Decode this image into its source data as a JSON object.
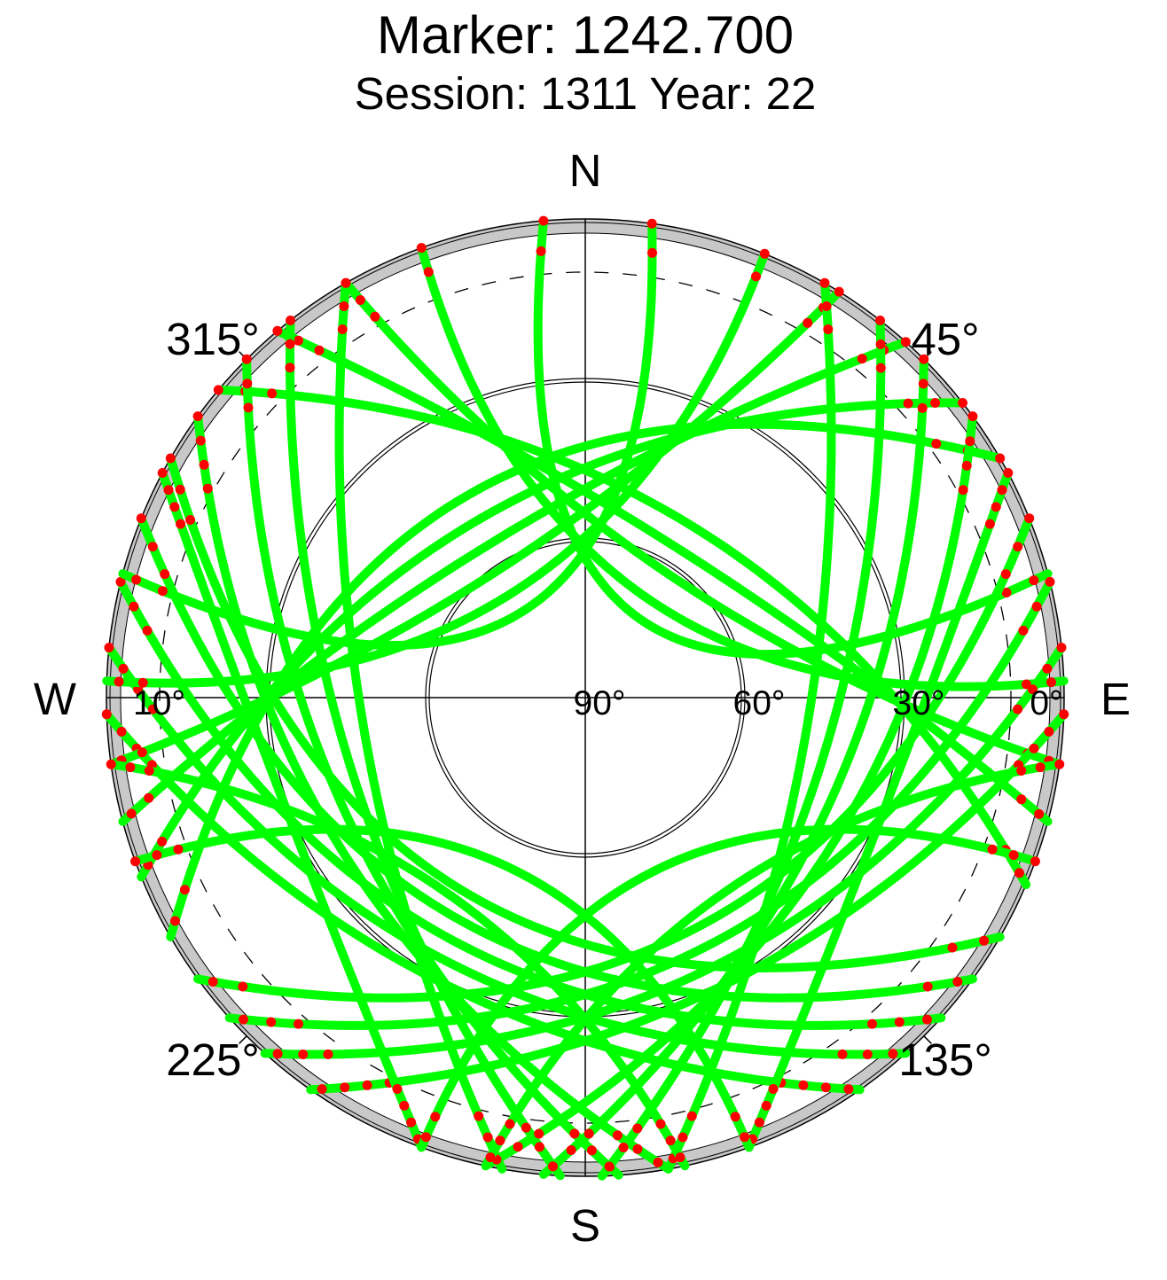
{
  "chart_data": {
    "type": "scatter",
    "title": "Marker: 1242.700",
    "subtitle": "Session: 1311 Year: 22",
    "projection": "polar skyplot (azimuth clockwise from north, elevation radial)",
    "compass": {
      "north": "N",
      "east": "E",
      "south": "S",
      "west": "W"
    },
    "azimuth_labels": [
      {
        "az": 45,
        "text": "45°"
      },
      {
        "az": 135,
        "text": "135°"
      },
      {
        "az": 225,
        "text": "225°"
      },
      {
        "az": 315,
        "text": "315°"
      }
    ],
    "elevation_labels": [
      {
        "el": 90,
        "text": "90°"
      },
      {
        "el": 60,
        "text": "60°"
      },
      {
        "el": 30,
        "text": "30°"
      },
      {
        "el": 0,
        "text": "0°"
      },
      {
        "el": 10,
        "text": "10°"
      }
    ],
    "elevation_circles": [
      0,
      30,
      60
    ],
    "cutoff_elevation_dashed": 10,
    "grid": true,
    "colors": {
      "track": "#00ff00",
      "low_elevation": "#ff0000",
      "grid": "#000000",
      "horizon_band": "#c8c8c8"
    },
    "series": [
      {
        "name": "",
        "color": "#00ff00",
        "role": "tracked",
        "tracks": [
          {
            "az_start": 355,
            "az_end": 75,
            "max_el": 72
          },
          {
            "az_start": 340,
            "az_end": 88,
            "max_el": 68
          },
          {
            "az_start": 330,
            "az_end": 98,
            "max_el": 62
          },
          {
            "az_start": 320,
            "az_end": 105,
            "max_el": 57
          },
          {
            "az_start": 310,
            "az_end": 113,
            "max_el": 52
          },
          {
            "az_start": 300,
            "az_end": 120,
            "max_el": 47
          },
          {
            "az_start": 292,
            "az_end": 126,
            "max_el": 42
          },
          {
            "az_start": 284,
            "az_end": 132,
            "max_el": 38
          },
          {
            "az_start": 276,
            "az_end": 138,
            "max_el": 34
          },
          {
            "az_start": 268,
            "az_end": 145,
            "max_el": 30
          },
          {
            "az_start": 8,
            "az_end": 285,
            "max_el": 70
          },
          {
            "az_start": 22,
            "az_end": 272,
            "max_el": 66
          },
          {
            "az_start": 32,
            "az_end": 262,
            "max_el": 61
          },
          {
            "az_start": 42,
            "az_end": 255,
            "max_el": 56
          },
          {
            "az_start": 52,
            "az_end": 248,
            "max_el": 51
          },
          {
            "az_start": 60,
            "az_end": 240,
            "max_el": 46
          },
          {
            "az_start": 68,
            "az_end": 234,
            "max_el": 42
          },
          {
            "az_start": 76,
            "az_end": 228,
            "max_el": 38
          },
          {
            "az_start": 84,
            "az_end": 222,
            "max_el": 34
          },
          {
            "az_start": 92,
            "az_end": 215,
            "max_el": 30
          },
          {
            "az_start": 330,
            "az_end": 190,
            "max_el": 48
          },
          {
            "az_start": 322,
            "az_end": 183,
            "max_el": 44
          },
          {
            "az_start": 315,
            "az_end": 176,
            "max_el": 40
          },
          {
            "az_start": 306,
            "az_end": 170,
            "max_el": 36
          },
          {
            "az_start": 298,
            "az_end": 200,
            "max_el": 30
          },
          {
            "az_start": 30,
            "az_end": 170,
            "max_el": 48
          },
          {
            "az_start": 38,
            "az_end": 178,
            "max_el": 44
          },
          {
            "az_start": 45,
            "az_end": 185,
            "max_el": 40
          },
          {
            "az_start": 54,
            "az_end": 192,
            "max_el": 36
          },
          {
            "az_start": 62,
            "az_end": 160,
            "max_el": 30
          },
          {
            "az_start": 250,
            "az_end": 160,
            "max_el": 55
          },
          {
            "az_start": 110,
            "az_end": 200,
            "max_el": 55
          },
          {
            "az_start": 262,
            "az_end": 168,
            "max_el": 45
          },
          {
            "az_start": 98,
            "az_end": 192,
            "max_el": 45
          }
        ]
      },
      {
        "name": "",
        "color": "#ff0000",
        "role": "below cutoff",
        "max_el": 10
      }
    ]
  }
}
